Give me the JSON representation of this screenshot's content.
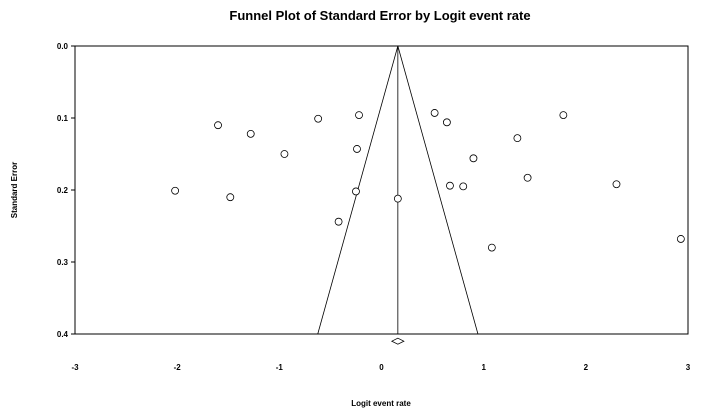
{
  "chart_data": {
    "type": "scatter",
    "title": "Funnel Plot of Standard Error by Logit event rate",
    "xlabel": "Logit event rate",
    "ylabel": "Standard Error",
    "xlim": [
      -3,
      3
    ],
    "ylim": [
      0.0,
      0.4
    ],
    "y_inverted": true,
    "x_ticks": [
      "-3",
      "-2",
      "-1",
      "0",
      "1",
      "2",
      "3"
    ],
    "y_ticks": [
      "0.0",
      "0.1",
      "0.2",
      "0.3",
      "0.4"
    ],
    "grid": false,
    "pooled_estimate": 0.16,
    "summary_diamond": {
      "center": 0.16,
      "se": 0.41
    },
    "points": [
      {
        "x": -2.02,
        "y": 0.201
      },
      {
        "x": -1.6,
        "y": 0.11
      },
      {
        "x": -1.48,
        "y": 0.21
      },
      {
        "x": -1.28,
        "y": 0.122
      },
      {
        "x": -0.95,
        "y": 0.15
      },
      {
        "x": -0.62,
        "y": 0.101
      },
      {
        "x": -0.42,
        "y": 0.244
      },
      {
        "x": -0.25,
        "y": 0.202
      },
      {
        "x": -0.24,
        "y": 0.143
      },
      {
        "x": -0.22,
        "y": 0.096
      },
      {
        "x": 0.16,
        "y": 0.212
      },
      {
        "x": 0.52,
        "y": 0.093
      },
      {
        "x": 0.64,
        "y": 0.106
      },
      {
        "x": 0.67,
        "y": 0.194
      },
      {
        "x": 0.8,
        "y": 0.195
      },
      {
        "x": 0.9,
        "y": 0.156
      },
      {
        "x": 1.08,
        "y": 0.28
      },
      {
        "x": 1.33,
        "y": 0.128
      },
      {
        "x": 1.43,
        "y": 0.183
      },
      {
        "x": 1.78,
        "y": 0.096
      },
      {
        "x": 2.3,
        "y": 0.192
      },
      {
        "x": 2.93,
        "y": 0.268
      }
    ]
  }
}
